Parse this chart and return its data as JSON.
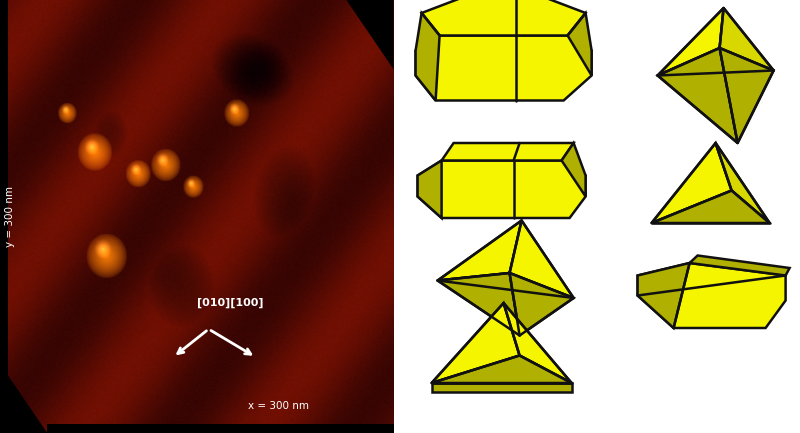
{
  "bg_color": "#ffffff",
  "crystal_yellow": "#f5f500",
  "crystal_yellow_mid": "#d8d800",
  "crystal_yellow_dark": "#b0b000",
  "crystal_edge": "#111111",
  "edge_lw": 1.8,
  "label_x": "x = 300 nm",
  "label_y": "y = 300 nm",
  "directions": "[010][100]"
}
